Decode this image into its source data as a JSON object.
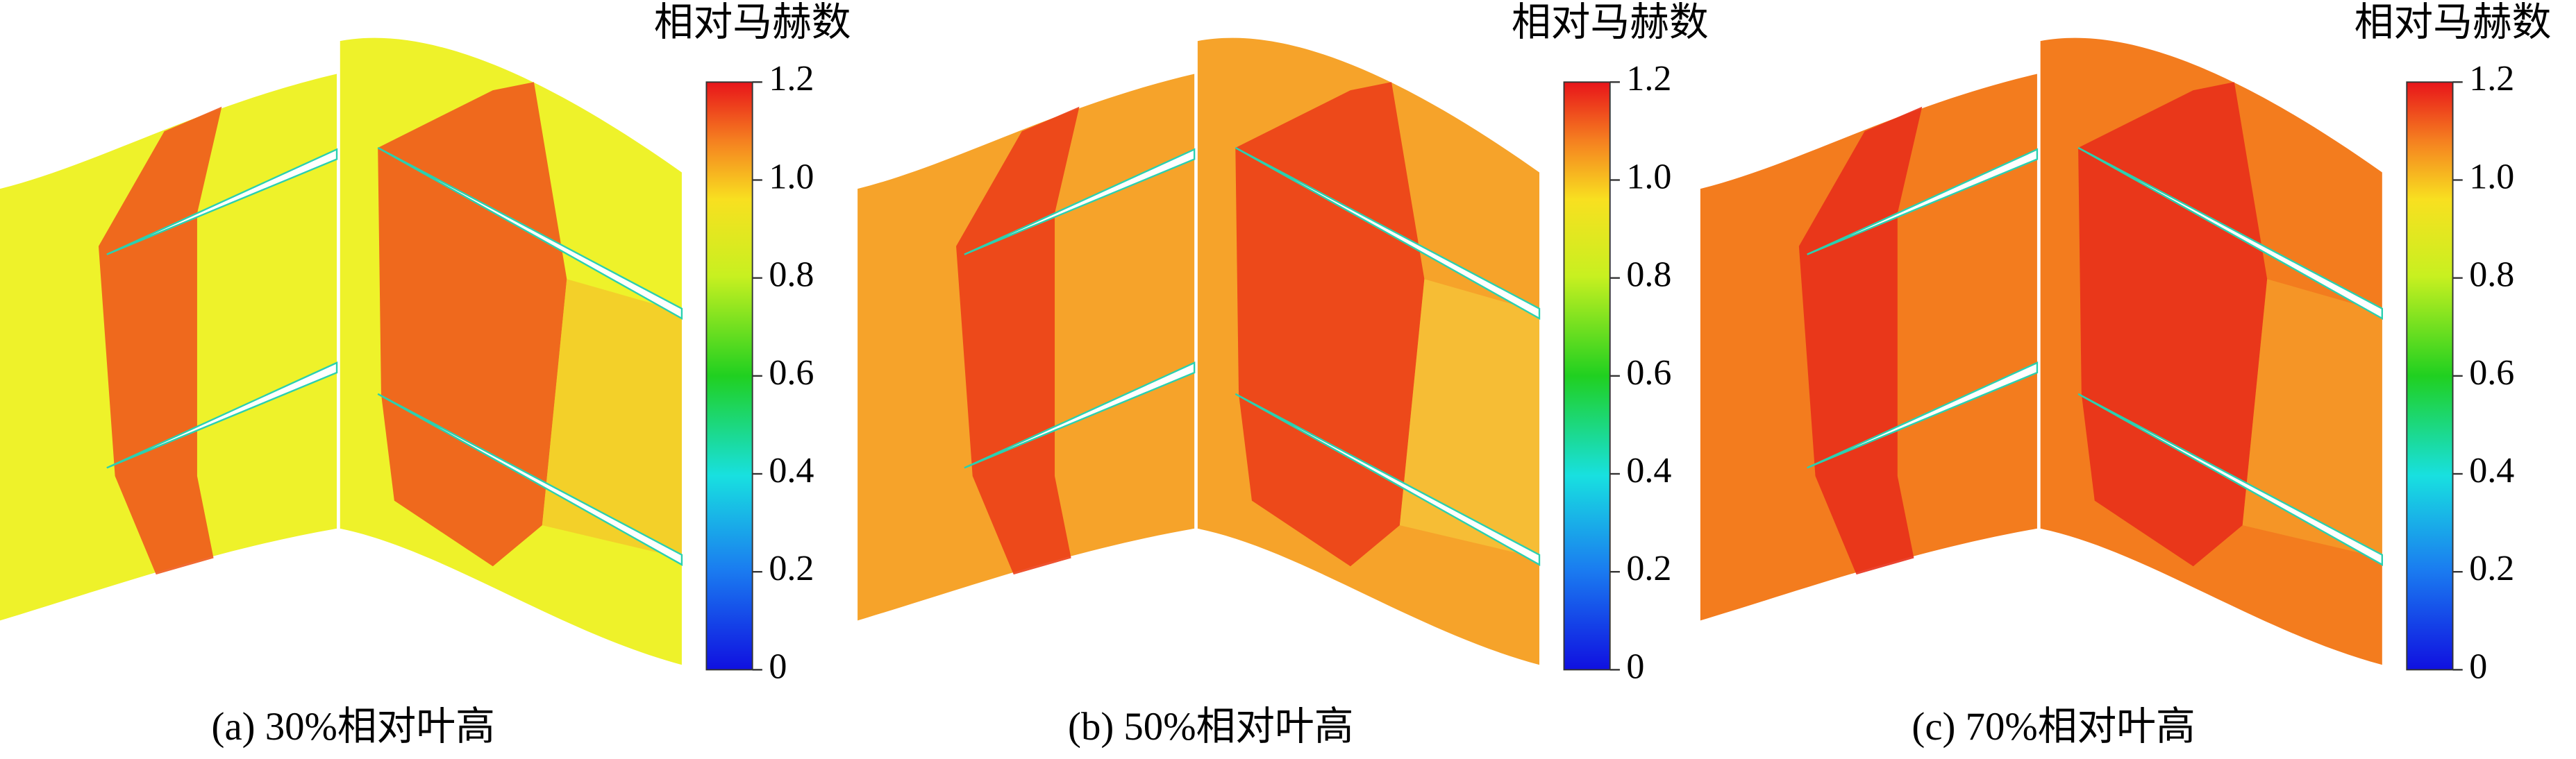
{
  "panels": [
    {
      "caption": "(a) 30%相对叶高",
      "colorbar": {
        "title": "相对马赫数",
        "ticks": [
          0,
          0.2,
          0.4,
          0.6,
          0.8,
          {
            "value": 1,
            "label": "1.0"
          },
          1.2
        ]
      }
    },
    {
      "caption": "(b) 50%相对叶高",
      "colorbar": {
        "title": "相对马赫数",
        "ticks": [
          0,
          0.2,
          0.4,
          0.6,
          0.8,
          {
            "value": 1,
            "label": "1.0"
          },
          1.2
        ]
      }
    },
    {
      "caption": "(c) 70%相对叶高",
      "colorbar": {
        "title": "相对马赫数",
        "ticks": [
          0,
          0.2,
          0.4,
          0.6,
          0.8,
          {
            "value": 1,
            "label": "1.0"
          },
          1.2
        ]
      }
    }
  ]
}
